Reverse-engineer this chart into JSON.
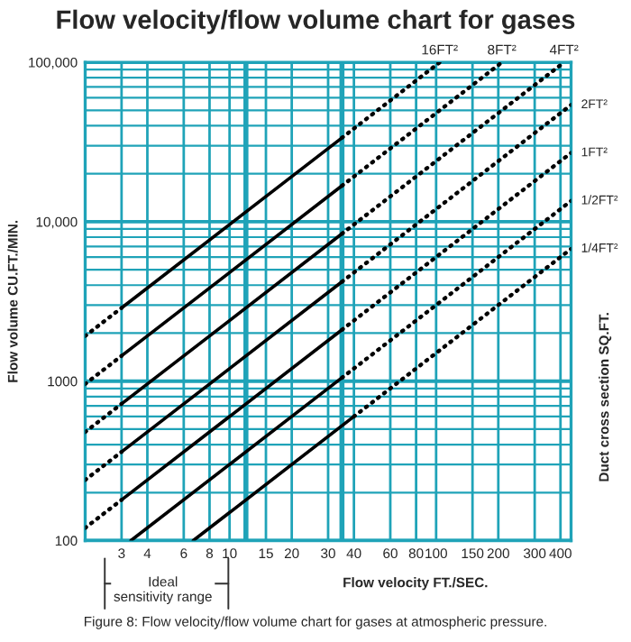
{
  "chart_data": {
    "type": "line",
    "title": "Flow velocity/flow volume chart for gases",
    "xlabel": "Flow velocity FT./SEC.",
    "ylabel": "Flow volume CU.FT./MIN.",
    "y2label": "Duct cross section SQ.FT.",
    "log": "xy",
    "grid": true,
    "marker": "none",
    "xlim": [
      2,
      450
    ],
    "ylim": [
      100,
      100000
    ],
    "xticks": [
      3,
      4,
      6,
      8,
      10,
      15,
      20,
      30,
      40,
      60,
      80,
      100,
      150,
      200,
      300,
      400
    ],
    "yticks": [
      {
        "value": 100,
        "label": "100"
      },
      {
        "value": 200,
        "label": null
      },
      {
        "value": 300,
        "label": null
      },
      {
        "value": 400,
        "label": null
      },
      {
        "value": 500,
        "label": null
      },
      {
        "value": 600,
        "label": null
      },
      {
        "value": 700,
        "label": null
      },
      {
        "value": 800,
        "label": null
      },
      {
        "value": 900,
        "label": null
      },
      {
        "value": 1000,
        "label": "1000"
      },
      {
        "value": 2000,
        "label": null
      },
      {
        "value": 3000,
        "label": null
      },
      {
        "value": 4000,
        "label": null
      },
      {
        "value": 5000,
        "label": null
      },
      {
        "value": 6000,
        "label": null
      },
      {
        "value": 7000,
        "label": null
      },
      {
        "value": 8000,
        "label": null
      },
      {
        "value": 9000,
        "label": null
      },
      {
        "value": 10000,
        "label": "10,000"
      },
      {
        "value": 20000,
        "label": null
      },
      {
        "value": 30000,
        "label": null
      },
      {
        "value": 40000,
        "label": null
      },
      {
        "value": 50000,
        "label": null
      },
      {
        "value": 60000,
        "label": null
      },
      {
        "value": 70000,
        "label": null
      },
      {
        "value": 80000,
        "label": null
      },
      {
        "value": 90000,
        "label": null
      },
      {
        "value": 100000,
        "label": "100,000"
      }
    ],
    "ref_lines": [
      {
        "axis": "x",
        "value": 12,
        "color": "#1fa3b8"
      },
      {
        "axis": "x",
        "value": 35,
        "color": "#1fa3b8"
      }
    ],
    "annotations": [
      "Ideal\nsensitivity range",
      "Figure 8: Flow velocity/flow volume chart for gases at atmospheric pressure."
    ],
    "series": [
      {
        "color": "#000000",
        "line_style": "dotted",
        "x": [
          2,
          3
        ],
        "values": [
          1920,
          2880
        ]
      },
      {
        "color": "#000000",
        "line_style": "solid",
        "x": [
          3,
          35
        ],
        "values": [
          2880,
          33600
        ]
      },
      {
        "name": "16FT²",
        "color": "#000000",
        "line_style": "dotted",
        "x": [
          35,
          104
        ],
        "values": [
          33600,
          99840
        ]
      },
      {
        "color": "#000000",
        "line_style": "dotted",
        "x": [
          2,
          3
        ],
        "values": [
          960,
          1440
        ]
      },
      {
        "color": "#000000",
        "line_style": "solid",
        "x": [
          3,
          35
        ],
        "values": [
          1440,
          16800
        ]
      },
      {
        "name": "8FT²",
        "color": "#000000",
        "line_style": "dotted",
        "x": [
          35,
          208
        ],
        "values": [
          16800,
          99840
        ]
      },
      {
        "color": "#000000",
        "line_style": "dotted",
        "x": [
          2,
          3
        ],
        "values": [
          480,
          720
        ]
      },
      {
        "color": "#000000",
        "line_style": "solid",
        "x": [
          3,
          35
        ],
        "values": [
          720,
          8400
        ]
      },
      {
        "name": "4FT²",
        "color": "#000000",
        "line_style": "dotted",
        "x": [
          35,
          416
        ],
        "values": [
          8400,
          99840
        ]
      },
      {
        "color": "#000000",
        "line_style": "dotted",
        "x": [
          2,
          3
        ],
        "values": [
          240,
          360
        ]
      },
      {
        "color": "#000000",
        "line_style": "solid",
        "x": [
          3,
          35
        ],
        "values": [
          360,
          4200
        ]
      },
      {
        "name": "2FT²",
        "color": "#000000",
        "line_style": "dotted",
        "x": [
          35,
          450
        ],
        "values": [
          4200,
          54000
        ]
      },
      {
        "color": "#000000",
        "line_style": "dotted",
        "x": [
          2,
          3
        ],
        "values": [
          120,
          180
        ]
      },
      {
        "color": "#000000",
        "line_style": "solid",
        "x": [
          3,
          35
        ],
        "values": [
          180,
          2100
        ]
      },
      {
        "name": "1FT²",
        "color": "#000000",
        "line_style": "dotted",
        "x": [
          35,
          450
        ],
        "values": [
          2100,
          27000
        ]
      },
      {
        "color": "#000000",
        "line_style": "solid",
        "x": [
          3.33,
          35
        ],
        "values": [
          100,
          1050
        ]
      },
      {
        "name": "1/2FT²",
        "color": "#000000",
        "line_style": "dotted",
        "x": [
          35,
          450
        ],
        "values": [
          1050,
          13500
        ]
      },
      {
        "color": "#000000",
        "line_style": "solid",
        "x": [
          6.67,
          40
        ],
        "values": [
          100,
          600
        ]
      },
      {
        "name": "1/4FT²",
        "color": "#000000",
        "line_style": "dotted",
        "x": [
          40,
          450
        ],
        "values": [
          600,
          6750
        ]
      }
    ]
  }
}
